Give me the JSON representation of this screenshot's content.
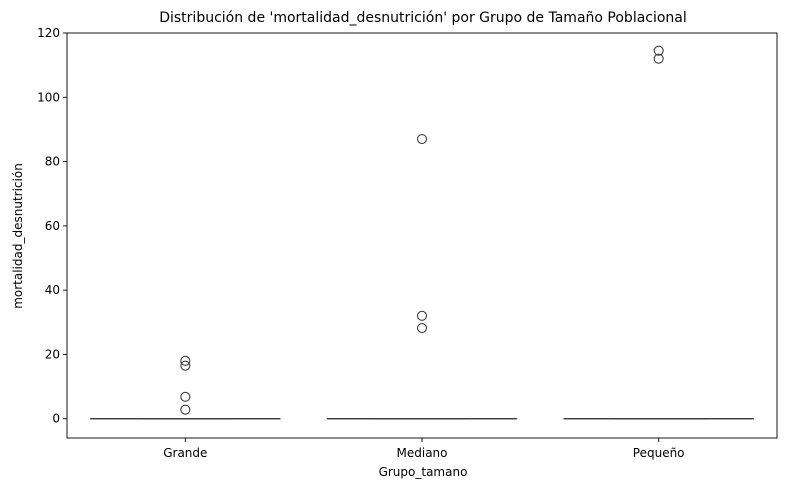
{
  "chart_data": {
    "type": "box",
    "title": "Distribución de 'mortalidad_desnutrición' por Grupo de Tamaño Poblacional",
    "xlabel": "Grupo_tamano",
    "ylabel": "mortalidad_desnutrición",
    "ylim": [
      -6,
      120
    ],
    "yticks": [
      0,
      20,
      40,
      60,
      80,
      100,
      120
    ],
    "grid": false,
    "series_color": "#3f3f3f",
    "categories": [
      "Grande",
      "Mediano",
      "Pequeño"
    ],
    "boxes": [
      {
        "category": "Grande",
        "min": 0,
        "q1": 0,
        "median": 0,
        "q3": 0,
        "max": 0,
        "outliers": [
          18,
          16.5,
          6.8,
          2.8
        ]
      },
      {
        "category": "Mediano",
        "min": 0,
        "q1": 0,
        "median": 0,
        "q3": 0,
        "max": 0,
        "outliers": [
          87,
          32,
          28.2
        ]
      },
      {
        "category": "Pequeño",
        "min": 0,
        "q1": 0,
        "median": 0,
        "q3": 0,
        "max": 0,
        "outliers": [
          114.5,
          112
        ]
      }
    ]
  }
}
